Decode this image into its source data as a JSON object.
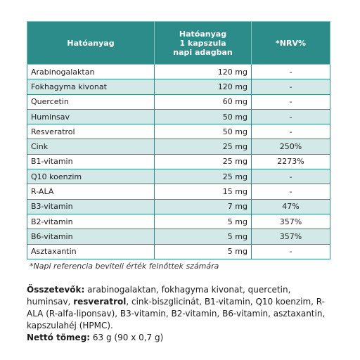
{
  "table": {
    "headers": [
      "Hatóanyag",
      [
        "Hatóanyag",
        "1 kapszula",
        "napi adagban"
      ],
      "*NRV%"
    ],
    "rows": [
      [
        "Arabinogalaktan",
        "120 mg",
        "-"
      ],
      [
        "Fokhagyma kivonat",
        "120 mg",
        "-"
      ],
      [
        "Quercetin",
        "60 mg",
        "-"
      ],
      [
        "Huminsav",
        "50 mg",
        "-"
      ],
      [
        "Resveratrol",
        "50 mg",
        "-"
      ],
      [
        "Cink",
        "25 mg",
        "250%"
      ],
      [
        "B1-vitamin",
        "25 mg",
        "2273%"
      ],
      [
        "Q10 koenzim",
        "25 mg",
        "-"
      ],
      [
        "R-ALA",
        "15 mg",
        "-"
      ],
      [
        "B3-vitamin",
        "7 mg",
        "47%"
      ],
      [
        "B2-vitamin",
        "5 mg",
        "357%"
      ],
      [
        "B6-vitamin",
        "5 mg",
        "357%"
      ],
      [
        "Asztaxantin",
        "5 mg",
        "-"
      ]
    ]
  },
  "footnote": "*Napi referencia beviteli érték felnőttek számára",
  "ingredients": {
    "label": "Összetevők:",
    "text_before": " arabinogalaktan, fokhagyma kivonat, quercetin, huminsav, ",
    "highlight": "resveratrol",
    "text_after": ", cink-biszglicinát, B1-vitamin, Q10 koenzim, R-ALA (R-alfa-liponsav), B3-vitamin, B2-vitamin, B6-vitamin, asztaxantin, kapszulahéj (HPMC)."
  },
  "net_weight": {
    "label": "Nettó tömeg:",
    "value": " 63 g (90 x 0,7 g)"
  }
}
